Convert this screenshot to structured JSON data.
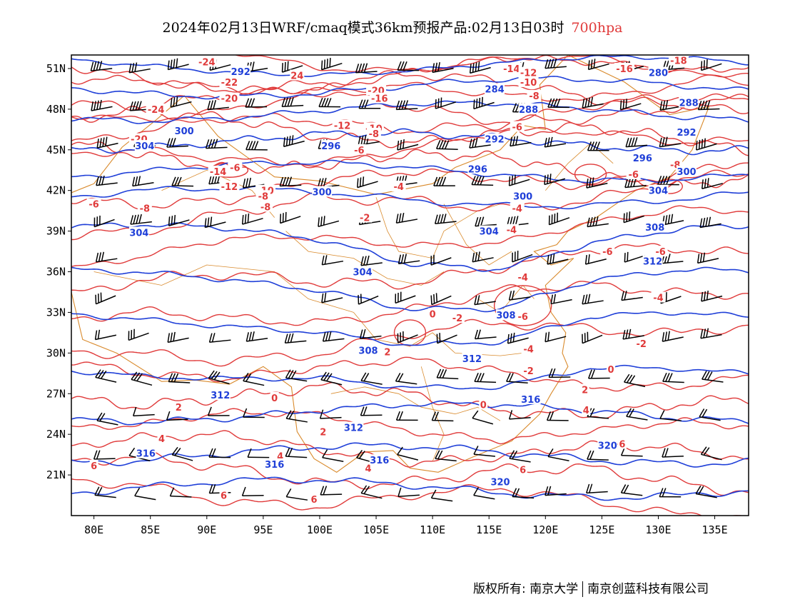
{
  "title": {
    "main": "2024年02月13日WRF/cmaq模式36km预报产品:02月13日03时",
    "level": "700hpa"
  },
  "axes": {
    "lat_labels": [
      "51N",
      "48N",
      "45N",
      "42N",
      "39N",
      "36N",
      "33N",
      "30N",
      "27N",
      "24N",
      "21N"
    ],
    "lat_values": [
      51,
      48,
      45,
      42,
      39,
      36,
      33,
      30,
      27,
      24,
      21
    ],
    "lon_labels": [
      "80E",
      "85E",
      "90E",
      "95E",
      "100E",
      "105E",
      "110E",
      "115E",
      "120E",
      "125E",
      "130E",
      "135E"
    ],
    "lon_values": [
      80,
      85,
      90,
      95,
      100,
      105,
      110,
      115,
      120,
      125,
      130,
      135
    ],
    "lon_range": [
      78,
      138
    ],
    "lat_range": [
      18,
      52
    ]
  },
  "colors": {
    "temperature": "#e03a3a",
    "height": "#1f3fd8",
    "border": "#d98a2c",
    "wind": "#000000"
  },
  "temperature_contours": [
    {
      "label": "-24",
      "lon": 90.0,
      "lat": 51.5
    },
    {
      "label": "-22",
      "lon": 92.0,
      "lat": 50.0
    },
    {
      "label": "24",
      "lon": 98.0,
      "lat": 50.5
    },
    {
      "label": "-20",
      "lon": 92.0,
      "lat": 48.8
    },
    {
      "label": "-24",
      "lon": 85.5,
      "lat": 48.0
    },
    {
      "label": "-20",
      "lon": 84.0,
      "lat": 45.8
    },
    {
      "label": "-14",
      "lon": 91.0,
      "lat": 43.4
    },
    {
      "label": "-6",
      "lon": 92.5,
      "lat": 43.7
    },
    {
      "label": "-12",
      "lon": 92.0,
      "lat": 42.3
    },
    {
      "label": "-10",
      "lon": 95.2,
      "lat": 42.0
    },
    {
      "label": "-8",
      "lon": 95.0,
      "lat": 41.6
    },
    {
      "label": "-8",
      "lon": 95.2,
      "lat": 40.8
    },
    {
      "label": "-6",
      "lon": 80.0,
      "lat": 41.0
    },
    {
      "label": "-8",
      "lon": 84.5,
      "lat": 40.7
    },
    {
      "label": "-20",
      "lon": 105.0,
      "lat": 49.4
    },
    {
      "label": "-16",
      "lon": 105.3,
      "lat": 48.8
    },
    {
      "label": "-12",
      "lon": 102.0,
      "lat": 46.8
    },
    {
      "label": "-10",
      "lon": 104.8,
      "lat": 46.6
    },
    {
      "label": "-8",
      "lon": 104.8,
      "lat": 46.2
    },
    {
      "label": "-6",
      "lon": 103.5,
      "lat": 45.0
    },
    {
      "label": "-4",
      "lon": 107.0,
      "lat": 42.3
    },
    {
      "label": "-2",
      "lon": 104.0,
      "lat": 40.0
    },
    {
      "label": "-14",
      "lon": 117.0,
      "lat": 51.0
    },
    {
      "label": "-12",
      "lon": 118.5,
      "lat": 50.7
    },
    {
      "label": "-10",
      "lon": 118.5,
      "lat": 50.0
    },
    {
      "label": "-8",
      "lon": 119.0,
      "lat": 49.0
    },
    {
      "label": "-18",
      "lon": 131.8,
      "lat": 51.6
    },
    {
      "label": "-16",
      "lon": 127.0,
      "lat": 51.0
    },
    {
      "label": "-6",
      "lon": 117.5,
      "lat": 46.7
    },
    {
      "label": "-8",
      "lon": 131.5,
      "lat": 43.9
    },
    {
      "label": "-6",
      "lon": 127.8,
      "lat": 43.2
    },
    {
      "label": "-4",
      "lon": 117.5,
      "lat": 40.7
    },
    {
      "label": "-4",
      "lon": 117.0,
      "lat": 39.1
    },
    {
      "label": "-6",
      "lon": 125.5,
      "lat": 37.5
    },
    {
      "label": "-6",
      "lon": 130.2,
      "lat": 37.5
    },
    {
      "label": "-4",
      "lon": 118.0,
      "lat": 35.6
    },
    {
      "label": "-4",
      "lon": 130.0,
      "lat": 34.1
    },
    {
      "label": "-6",
      "lon": 118.0,
      "lat": 32.7
    },
    {
      "label": "-2",
      "lon": 112.2,
      "lat": 32.6
    },
    {
      "label": "0",
      "lon": 110.0,
      "lat": 32.9
    },
    {
      "label": "-4",
      "lon": 118.5,
      "lat": 30.3
    },
    {
      "label": "-2",
      "lon": 128.5,
      "lat": 30.7
    },
    {
      "label": "2",
      "lon": 106.0,
      "lat": 30.1
    },
    {
      "label": "-2",
      "lon": 118.5,
      "lat": 28.7
    },
    {
      "label": "0",
      "lon": 125.8,
      "lat": 28.8
    },
    {
      "label": "2",
      "lon": 123.5,
      "lat": 27.3
    },
    {
      "label": "0",
      "lon": 96.0,
      "lat": 26.7
    },
    {
      "label": "2",
      "lon": 87.5,
      "lat": 26.0
    },
    {
      "label": "0",
      "lon": 114.5,
      "lat": 26.2
    },
    {
      "label": "4",
      "lon": 123.6,
      "lat": 25.8
    },
    {
      "label": "2",
      "lon": 100.3,
      "lat": 24.2
    },
    {
      "label": "4",
      "lon": 86.0,
      "lat": 23.7
    },
    {
      "label": "4",
      "lon": 96.5,
      "lat": 22.4
    },
    {
      "label": "6",
      "lon": 126.8,
      "lat": 23.3
    },
    {
      "label": "4",
      "lon": 104.3,
      "lat": 21.5
    },
    {
      "label": "6",
      "lon": 80.0,
      "lat": 21.7
    },
    {
      "label": "6",
      "lon": 118.0,
      "lat": 21.4
    },
    {
      "label": "6",
      "lon": 91.5,
      "lat": 19.5
    },
    {
      "label": "6",
      "lon": 99.5,
      "lat": 19.2
    }
  ],
  "height_contours": [
    {
      "label": "292",
      "lon": 93.0,
      "lat": 50.8
    },
    {
      "label": "300",
      "lon": 88.0,
      "lat": 46.4
    },
    {
      "label": "304",
      "lon": 84.5,
      "lat": 45.3
    },
    {
      "label": "296",
      "lon": 101.0,
      "lat": 45.3
    },
    {
      "label": "300",
      "lon": 100.2,
      "lat": 41.9
    },
    {
      "label": "304",
      "lon": 84.0,
      "lat": 38.9
    },
    {
      "label": "284",
      "lon": 115.5,
      "lat": 49.5
    },
    {
      "label": "288",
      "lon": 118.5,
      "lat": 48.0
    },
    {
      "label": "292",
      "lon": 115.5,
      "lat": 45.8
    },
    {
      "label": "296",
      "lon": 114.0,
      "lat": 43.6
    },
    {
      "label": "300",
      "lon": 118.0,
      "lat": 41.6
    },
    {
      "label": "304",
      "lon": 115.0,
      "lat": 39.0
    },
    {
      "label": "304",
      "lon": 103.8,
      "lat": 36.0
    },
    {
      "label": "280",
      "lon": 130.0,
      "lat": 50.7
    },
    {
      "label": "288",
      "lon": 132.7,
      "lat": 48.5
    },
    {
      "label": "292",
      "lon": 132.5,
      "lat": 46.3
    },
    {
      "label": "296",
      "lon": 128.6,
      "lat": 44.4
    },
    {
      "label": "300",
      "lon": 132.5,
      "lat": 43.4
    },
    {
      "label": "304",
      "lon": 130.0,
      "lat": 42.0
    },
    {
      "label": "308",
      "lon": 129.7,
      "lat": 39.3
    },
    {
      "label": "312",
      "lon": 129.5,
      "lat": 36.8
    },
    {
      "label": "308",
      "lon": 116.5,
      "lat": 32.8
    },
    {
      "label": "308",
      "lon": 104.3,
      "lat": 30.2
    },
    {
      "label": "312",
      "lon": 113.5,
      "lat": 29.6
    },
    {
      "label": "312",
      "lon": 91.2,
      "lat": 26.9
    },
    {
      "label": "316",
      "lon": 118.7,
      "lat": 26.6
    },
    {
      "label": "312",
      "lon": 103.0,
      "lat": 24.5
    },
    {
      "label": "316",
      "lon": 84.6,
      "lat": 22.6
    },
    {
      "label": "316",
      "lon": 96.0,
      "lat": 21.8
    },
    {
      "label": "316",
      "lon": 105.3,
      "lat": 22.1
    },
    {
      "label": "320",
      "lon": 125.5,
      "lat": 23.2
    },
    {
      "label": "320",
      "lon": 116.0,
      "lat": 20.5
    }
  ],
  "footer": {
    "copyright": "版权所有: 南京大学",
    "company": "南京创蓝科技有限公司"
  }
}
